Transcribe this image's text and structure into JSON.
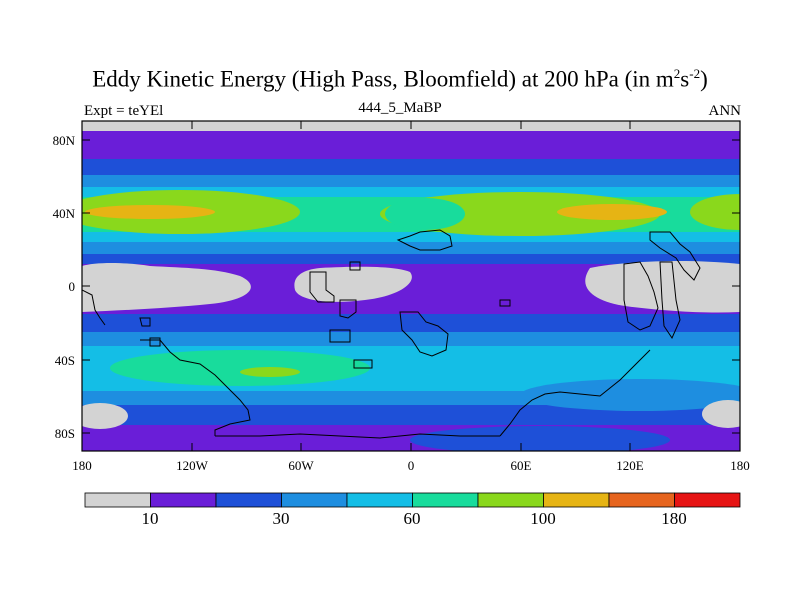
{
  "title": {
    "main": "Eddy Kinetic Energy (High Pass, Bloomfield) at 200 hPa (in m",
    "sup1": "2",
    "mid": "s",
    "sup2": "-2",
    "end": ")"
  },
  "subtitle": "444_5_MaBP",
  "left_label": "Expt = teYEl",
  "right_label": "ANN",
  "map": {
    "lat_ticks": [
      "80N",
      "40N",
      "0",
      "40S",
      "80S"
    ],
    "lon_ticks": [
      "180",
      "120W",
      "60W",
      "0",
      "60E",
      "120E",
      "180"
    ]
  },
  "colorbar": {
    "colors": [
      "#d3d3d3",
      "#6a1ed8",
      "#1e50d8",
      "#1e8ee0",
      "#14bee6",
      "#18dc9c",
      "#8ad81c",
      "#e6b414",
      "#e6641e",
      "#e61414"
    ],
    "labels": [
      "10",
      "30",
      "60",
      "100",
      "180"
    ]
  }
}
